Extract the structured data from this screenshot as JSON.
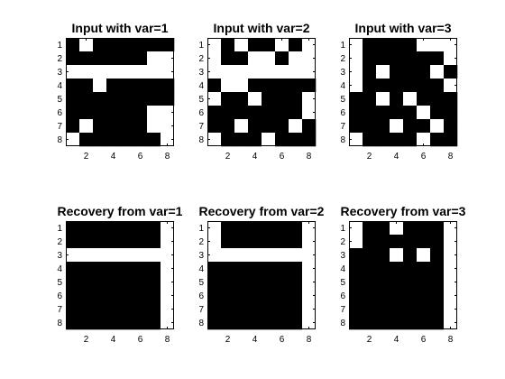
{
  "chart_data": [
    {
      "type": "heatmap",
      "title": "Input with var=1",
      "xticks": [
        2,
        4,
        6,
        8
      ],
      "yticks": [
        1,
        2,
        3,
        4,
        5,
        6,
        7,
        8
      ],
      "xlim": [
        0.5,
        8.5
      ],
      "ylim": [
        0.5,
        8.5
      ],
      "colormap": {
        "0": "#ffffff",
        "1": "#000000"
      },
      "grid": false,
      "values": [
        [
          1,
          0,
          1,
          1,
          1,
          1,
          1,
          1
        ],
        [
          1,
          1,
          1,
          1,
          1,
          1,
          0,
          0
        ],
        [
          0,
          0,
          0,
          0,
          0,
          0,
          0,
          0
        ],
        [
          1,
          1,
          0,
          1,
          1,
          1,
          1,
          1
        ],
        [
          1,
          1,
          1,
          1,
          1,
          1,
          1,
          1
        ],
        [
          1,
          1,
          1,
          1,
          1,
          1,
          0,
          0
        ],
        [
          1,
          0,
          1,
          1,
          1,
          1,
          0,
          0
        ],
        [
          0,
          1,
          1,
          1,
          1,
          1,
          1,
          0
        ]
      ]
    },
    {
      "type": "heatmap",
      "title": "Input with var=2",
      "xticks": [
        2,
        4,
        6,
        8
      ],
      "yticks": [
        1,
        2,
        3,
        4,
        5,
        6,
        7,
        8
      ],
      "xlim": [
        0.5,
        8.5
      ],
      "ylim": [
        0.5,
        8.5
      ],
      "colormap": {
        "0": "#ffffff",
        "1": "#000000"
      },
      "grid": false,
      "values": [
        [
          0,
          1,
          0,
          1,
          1,
          0,
          1,
          0
        ],
        [
          0,
          1,
          1,
          0,
          0,
          1,
          0,
          0
        ],
        [
          0,
          0,
          0,
          0,
          0,
          0,
          0,
          0
        ],
        [
          1,
          0,
          0,
          1,
          1,
          1,
          1,
          1
        ],
        [
          0,
          1,
          1,
          0,
          1,
          1,
          1,
          0
        ],
        [
          1,
          1,
          1,
          1,
          1,
          1,
          1,
          0
        ],
        [
          1,
          1,
          0,
          1,
          1,
          1,
          0,
          1
        ],
        [
          0,
          1,
          1,
          1,
          0,
          1,
          1,
          1
        ]
      ]
    },
    {
      "type": "heatmap",
      "title": "Input with var=3",
      "xticks": [
        2,
        4,
        6,
        8
      ],
      "yticks": [
        1,
        2,
        3,
        4,
        5,
        6,
        7,
        8
      ],
      "xlim": [
        0.5,
        8.5
      ],
      "ylim": [
        0.5,
        8.5
      ],
      "colormap": {
        "0": "#ffffff",
        "1": "#000000"
      },
      "grid": false,
      "values": [
        [
          0,
          1,
          1,
          1,
          1,
          0,
          0,
          0
        ],
        [
          0,
          1,
          1,
          1,
          1,
          1,
          1,
          0
        ],
        [
          0,
          1,
          0,
          1,
          1,
          1,
          0,
          1
        ],
        [
          0,
          1,
          1,
          1,
          1,
          1,
          1,
          0
        ],
        [
          1,
          1,
          0,
          1,
          0,
          1,
          1,
          1
        ],
        [
          1,
          1,
          1,
          1,
          1,
          0,
          1,
          1
        ],
        [
          1,
          1,
          1,
          0,
          1,
          1,
          0,
          1
        ],
        [
          0,
          1,
          1,
          1,
          1,
          0,
          1,
          1
        ]
      ]
    },
    {
      "type": "heatmap",
      "title": "Recovery from var=1",
      "xticks": [
        2,
        4,
        6,
        8
      ],
      "yticks": [
        1,
        2,
        3,
        4,
        5,
        6,
        7,
        8
      ],
      "xlim": [
        0.5,
        8.5
      ],
      "ylim": [
        0.5,
        8.5
      ],
      "colormap": {
        "0": "#ffffff",
        "1": "#000000"
      },
      "grid": false,
      "values": [
        [
          1,
          1,
          1,
          1,
          1,
          1,
          1,
          0
        ],
        [
          1,
          1,
          1,
          1,
          1,
          1,
          1,
          0
        ],
        [
          0,
          0,
          0,
          0,
          0,
          0,
          0,
          0
        ],
        [
          1,
          1,
          1,
          1,
          1,
          1,
          1,
          0
        ],
        [
          1,
          1,
          1,
          1,
          1,
          1,
          1,
          0
        ],
        [
          1,
          1,
          1,
          1,
          1,
          1,
          1,
          0
        ],
        [
          1,
          1,
          1,
          1,
          1,
          1,
          1,
          0
        ],
        [
          1,
          1,
          1,
          1,
          1,
          1,
          1,
          0
        ]
      ]
    },
    {
      "type": "heatmap",
      "title": "Recovery from var=2",
      "xticks": [
        2,
        4,
        6,
        8
      ],
      "yticks": [
        1,
        2,
        3,
        4,
        5,
        6,
        7,
        8
      ],
      "xlim": [
        0.5,
        8.5
      ],
      "ylim": [
        0.5,
        8.5
      ],
      "colormap": {
        "0": "#ffffff",
        "1": "#000000"
      },
      "grid": false,
      "values": [
        [
          0,
          1,
          1,
          1,
          1,
          1,
          1,
          0
        ],
        [
          0,
          1,
          1,
          1,
          1,
          1,
          1,
          0
        ],
        [
          0,
          0,
          0,
          0,
          0,
          0,
          0,
          0
        ],
        [
          1,
          1,
          1,
          1,
          1,
          1,
          1,
          0
        ],
        [
          1,
          1,
          1,
          1,
          1,
          1,
          1,
          0
        ],
        [
          1,
          1,
          1,
          1,
          1,
          1,
          1,
          0
        ],
        [
          1,
          1,
          1,
          1,
          1,
          1,
          1,
          0
        ],
        [
          1,
          1,
          1,
          1,
          1,
          1,
          1,
          0
        ]
      ]
    },
    {
      "type": "heatmap",
      "title": "Recovery from var=3",
      "xticks": [
        2,
        4,
        6,
        8
      ],
      "yticks": [
        1,
        2,
        3,
        4,
        5,
        6,
        7,
        8
      ],
      "xlim": [
        0.5,
        8.5
      ],
      "ylim": [
        0.5,
        8.5
      ],
      "colormap": {
        "0": "#ffffff",
        "1": "#000000"
      },
      "grid": false,
      "values": [
        [
          0,
          1,
          1,
          0,
          1,
          1,
          1,
          0
        ],
        [
          0,
          1,
          1,
          1,
          1,
          1,
          1,
          0
        ],
        [
          1,
          1,
          1,
          0,
          1,
          0,
          1,
          0
        ],
        [
          1,
          1,
          1,
          1,
          1,
          1,
          1,
          0
        ],
        [
          1,
          1,
          1,
          1,
          1,
          1,
          1,
          0
        ],
        [
          1,
          1,
          1,
          1,
          1,
          1,
          1,
          0
        ],
        [
          1,
          1,
          1,
          1,
          1,
          1,
          1,
          0
        ],
        [
          1,
          1,
          1,
          1,
          1,
          1,
          1,
          0
        ]
      ]
    }
  ]
}
